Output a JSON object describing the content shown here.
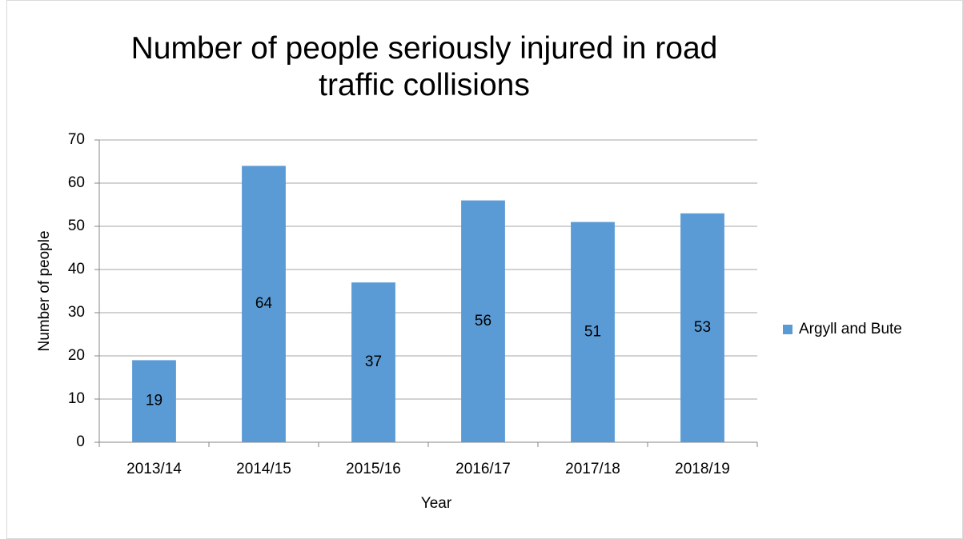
{
  "chart_data": {
    "type": "bar",
    "title": "Number of people seriously injured in road traffic collisions",
    "x_label": "Year",
    "y_label": "Number of people",
    "categories": [
      "2013/14",
      "2014/15",
      "2015/16",
      "2016/17",
      "2017/18",
      "2018/19"
    ],
    "series": [
      {
        "name": "Argyll and Bute",
        "color": "#5b9bd5",
        "values": [
          19,
          64,
          37,
          56,
          51,
          53
        ]
      }
    ],
    "ylim": [
      0,
      70
    ],
    "yticks": [
      0,
      10,
      20,
      30,
      40,
      50,
      60,
      70
    ],
    "grid": true,
    "legend": "right"
  }
}
